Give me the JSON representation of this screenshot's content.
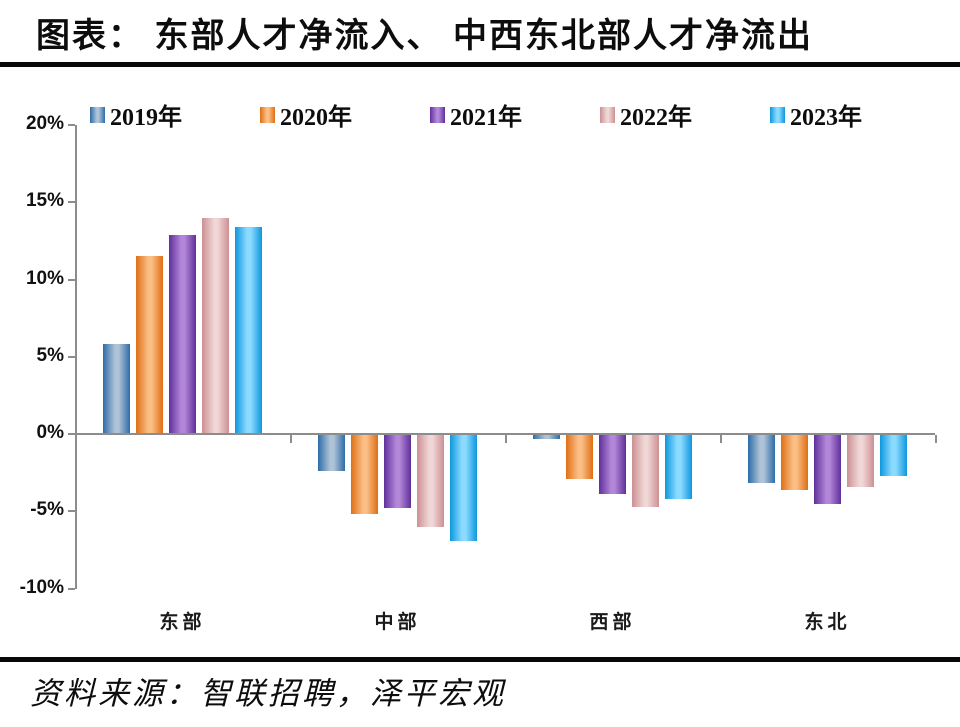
{
  "header": {
    "title": "图表： 东部人才净流入、 中西东北部人才净流出"
  },
  "footer": {
    "source": "资料来源：智联招聘，泽平宏观"
  },
  "chart_data": {
    "type": "bar",
    "title": "东部人才净流入、中西东北部人才净流出",
    "categories": [
      "东部",
      "中部",
      "西部",
      "东北"
    ],
    "series": [
      {
        "name": "2019年",
        "values": [
          5.8,
          -2.4,
          -0.3,
          -3.2
        ],
        "edge_color": "#2E6CA8",
        "mid_color": "#AFC3D6"
      },
      {
        "name": "2020年",
        "values": [
          11.5,
          -5.2,
          -2.9,
          -3.6
        ],
        "edge_color": "#DE6F15",
        "mid_color": "#FBBE85"
      },
      {
        "name": "2021年",
        "values": [
          12.9,
          -4.8,
          -3.9,
          -4.5
        ],
        "edge_color": "#60309A",
        "mid_color": "#B286D8"
      },
      {
        "name": "2022年",
        "values": [
          14.0,
          -6.0,
          -4.7,
          -3.4
        ],
        "edge_color": "#CC9093",
        "mid_color": "#F0D6D6"
      },
      {
        "name": "2023年",
        "values": [
          13.4,
          -6.9,
          -4.2,
          -2.7
        ],
        "edge_color": "#0D97DE",
        "mid_color": "#8CDBFF"
      }
    ],
    "y_axis": {
      "tick_labels": [
        "20%",
        "15%",
        "10%",
        "5%",
        "0%",
        "-5%",
        "-10%"
      ],
      "tick_values": [
        20,
        15,
        10,
        5,
        0,
        -5,
        -10
      ],
      "ylim": [
        -10,
        20
      ]
    },
    "xlabel": "",
    "ylabel": "",
    "grid": false,
    "legend_position": "top",
    "axis_color": "#8c8c8c"
  }
}
